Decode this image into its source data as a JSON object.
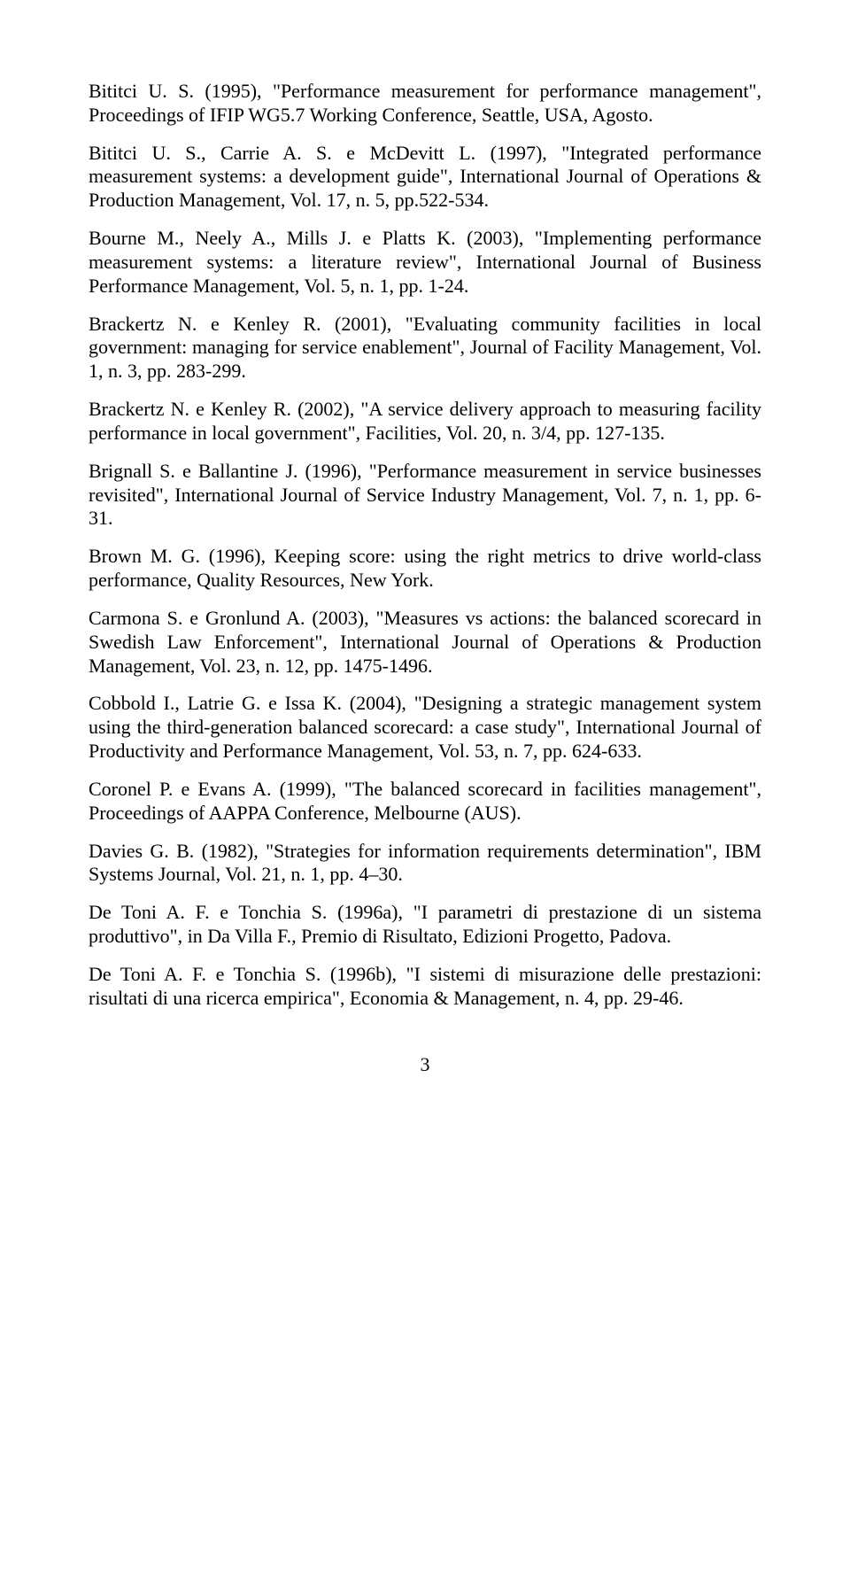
{
  "references": [
    "Bititci U. S. (1995), \"Performance measurement for performance management\", Proceedings of IFIP WG5.7 Working Conference, Seattle, USA, Agosto.",
    "Bititci U. S., Carrie A. S. e McDevitt L. (1997), \"Integrated performance measurement systems: a development guide\", International Journal of Operations & Production Management, Vol. 17, n. 5, pp.522-534.",
    "Bourne M., Neely A., Mills J. e Platts K. (2003), \"Implementing performance measurement systems: a literature review\", International Journal of Business Performance Management, Vol. 5, n. 1, pp. 1-24.",
    "Brackertz N. e Kenley R. (2001), \"Evaluating community facilities in local government: managing for service enablement\", Journal of Facility Management, Vol. 1, n. 3, pp. 283-299.",
    "Brackertz N. e Kenley R. (2002), \"A service delivery approach to measuring facility performance in local government\", Facilities, Vol. 20, n. 3/4, pp. 127-135.",
    "Brignall S. e Ballantine J. (1996), \"Performance measurement in service businesses revisited\", International Journal of Service Industry Management, Vol. 7, n. 1, pp. 6-31.",
    "Brown M. G. (1996), Keeping score: using the right metrics to drive world-class performance, Quality Resources, New York.",
    "Carmona S. e Gronlund A. (2003), \"Measures vs actions: the balanced scorecard in Swedish Law Enforcement\", International Journal of Operations & Production Management, Vol. 23, n. 12, pp. 1475-1496.",
    "Cobbold I., Latrie G. e Issa K. (2004), \"Designing a strategic management system using the third-generation balanced scorecard: a case study\", International Journal of Productivity and Performance Management, Vol. 53, n. 7, pp. 624-633.",
    "Coronel P. e Evans A. (1999), \"The balanced scorecard in facilities management\", Proceedings of AAPPA Conference, Melbourne (AUS).",
    "Davies G. B. (1982), \"Strategies for information requirements determination\", IBM Systems Journal, Vol. 21, n. 1, pp. 4–30.",
    "De Toni A. F. e Tonchia S. (1996a), \"I parametri di prestazione di un sistema produttivo\", in Da Villa F., Premio di Risultato, Edizioni Progetto, Padova.",
    "De Toni A. F. e Tonchia S. (1996b), \"I sistemi di misurazione delle prestazioni: risultati di una ricerca empirica\", Economia & Management, n. 4, pp. 29-46."
  ],
  "page_number": "3"
}
